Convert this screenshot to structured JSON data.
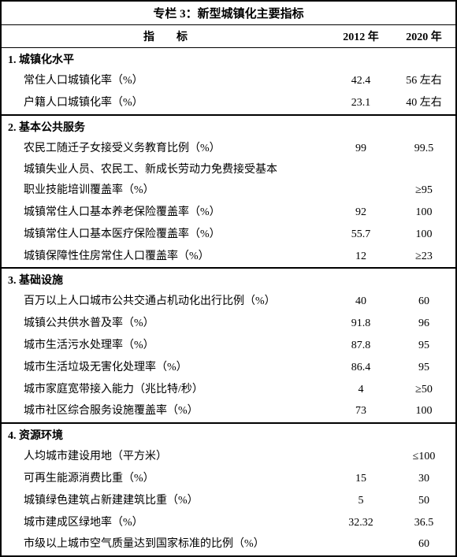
{
  "title": "专栏 3：新型城镇化主要指标",
  "header": {
    "indicator": "指标",
    "y1": "2012 年",
    "y2": "2020 年"
  },
  "sections": [
    {
      "heading": "1. 城镇化水平",
      "rows": [
        {
          "label": "常住人口城镇化率（%）",
          "v1": "42.4",
          "v2": "56 左右",
          "hr": false
        },
        {
          "label": "户籍人口城镇化率（%）",
          "v1": "23.1",
          "v2": "40 左右",
          "hr": true
        }
      ]
    },
    {
      "heading": "2. 基本公共服务",
      "rows": [
        {
          "label": "农民工随迁子女接受义务教育比例（%）",
          "v1": "99",
          "v2": "99.5",
          "hr": false
        },
        {
          "cont": "城镇失业人员、农民工、新成长劳动力免费接受基本"
        },
        {
          "label": "职业技能培训覆盖率（%）",
          "v1": "",
          "v2": "≥95",
          "hr": false
        },
        {
          "label": "城镇常住人口基本养老保险覆盖率（%）",
          "v1": "92",
          "v2": "100",
          "hr": false
        },
        {
          "label": "城镇常住人口基本医疗保险覆盖率（%）",
          "v1": "55.7",
          "v2": "100",
          "hr": false
        },
        {
          "label": "城镇保障性住房常住人口覆盖率（%）",
          "v1": "12",
          "v2": "≥23",
          "hr": true
        }
      ]
    },
    {
      "heading": "3. 基础设施",
      "rows": [
        {
          "label": "百万以上人口城市公共交通占机动化出行比例（%）",
          "v1": "40",
          "v2": "60",
          "hr": false
        },
        {
          "label": "城镇公共供水普及率（%）",
          "v1": "91.8",
          "v2": "96",
          "hr": false
        },
        {
          "label": "城市生活污水处理率（%）",
          "v1": "87.8",
          "v2": "95",
          "hr": false
        },
        {
          "label": "城市生活垃圾无害化处理率（%）",
          "v1": "86.4",
          "v2": "95",
          "hr": false
        },
        {
          "label": "城市家庭宽带接入能力（兆比特/秒）",
          "v1": "4",
          "v2": "≥50",
          "hr": false
        },
        {
          "label": "城市社区综合服务设施覆盖率（%）",
          "v1": "73",
          "v2": "100",
          "hr": true
        }
      ]
    },
    {
      "heading": "4. 资源环境",
      "rows": [
        {
          "label": "人均城市建设用地（平方米）",
          "v1": "",
          "v2": "≤100",
          "hr": false
        },
        {
          "label": "可再生能源消费比重（%）",
          "v1": "15",
          "v2": "30",
          "hr": false
        },
        {
          "label": "城镇绿色建筑占新建建筑比重（%）",
          "v1": "5",
          "v2": "50",
          "hr": false
        },
        {
          "label": "城市建成区绿地率（%）",
          "v1": "32.32",
          "v2": "36.5",
          "hr": false
        },
        {
          "label": "市级以上城市空气质量达到国家标准的比例（%）",
          "v1": "",
          "v2": "60",
          "hr": false
        }
      ]
    }
  ]
}
